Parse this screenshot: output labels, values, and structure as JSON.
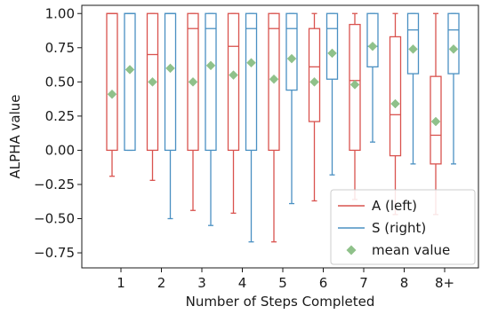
{
  "chart_data": {
    "type": "box",
    "xlabel": "Number of Steps Completed",
    "ylabel": "ALPHA value",
    "categories": [
      "1",
      "2",
      "3",
      "4",
      "5",
      "6",
      "7",
      "8",
      "8+"
    ],
    "ylim": [
      -0.86,
      1.06
    ],
    "yticks": [
      {
        "value": 1.0,
        "label": "1.00"
      },
      {
        "value": 0.75,
        "label": "0.75"
      },
      {
        "value": 0.5,
        "label": "0.50"
      },
      {
        "value": 0.25,
        "label": "0.25"
      },
      {
        "value": 0.0,
        "label": "0.00"
      },
      {
        "value": -0.25,
        "label": "−0.25"
      },
      {
        "value": -0.5,
        "label": "−0.50"
      },
      {
        "value": -0.75,
        "label": "−0.75"
      }
    ],
    "grid": false,
    "legend_position": "bottom-right",
    "series": [
      {
        "name": "A (left)",
        "color": "#d9534f",
        "boxes": [
          {
            "whislo": -0.19,
            "q1": 0.0,
            "med": 1.0,
            "q3": 1.0,
            "whishi": 1.0,
            "mean": 0.41
          },
          {
            "whislo": -0.22,
            "q1": 0.0,
            "med": 0.7,
            "q3": 1.0,
            "whishi": 1.0,
            "mean": 0.5
          },
          {
            "whislo": -0.44,
            "q1": 0.0,
            "med": 0.89,
            "q3": 1.0,
            "whishi": 1.0,
            "mean": 0.5
          },
          {
            "whislo": -0.46,
            "q1": 0.0,
            "med": 0.76,
            "q3": 1.0,
            "whishi": 1.0,
            "mean": 0.55
          },
          {
            "whislo": -0.67,
            "q1": 0.0,
            "med": 0.89,
            "q3": 1.0,
            "whishi": 1.0,
            "mean": 0.52
          },
          {
            "whislo": -0.37,
            "q1": 0.21,
            "med": 0.61,
            "q3": 0.89,
            "whishi": 1.0,
            "mean": 0.5
          },
          {
            "whislo": -0.36,
            "q1": 0.0,
            "med": 0.51,
            "q3": 0.92,
            "whishi": 1.0,
            "mean": 0.48
          },
          {
            "whislo": -0.47,
            "q1": -0.04,
            "med": 0.26,
            "q3": 0.83,
            "whishi": 1.0,
            "mean": 0.34
          },
          {
            "whislo": -0.47,
            "q1": -0.1,
            "med": 0.11,
            "q3": 0.54,
            "whishi": 1.0,
            "mean": 0.21
          }
        ]
      },
      {
        "name": "S (right)",
        "color": "#4a90c2",
        "boxes": [
          {
            "whislo": 0.0,
            "q1": 0.0,
            "med": 1.0,
            "q3": 1.0,
            "whishi": 1.0,
            "mean": 0.59
          },
          {
            "whislo": -0.5,
            "q1": 0.0,
            "med": 1.0,
            "q3": 1.0,
            "whishi": 1.0,
            "mean": 0.6
          },
          {
            "whislo": -0.55,
            "q1": 0.0,
            "med": 0.89,
            "q3": 1.0,
            "whishi": 1.0,
            "mean": 0.62
          },
          {
            "whislo": -0.67,
            "q1": 0.0,
            "med": 0.89,
            "q3": 1.0,
            "whishi": 1.0,
            "mean": 0.64
          },
          {
            "whislo": -0.39,
            "q1": 0.44,
            "med": 0.89,
            "q3": 1.0,
            "whishi": 1.0,
            "mean": 0.67
          },
          {
            "whislo": -0.18,
            "q1": 0.52,
            "med": 0.89,
            "q3": 1.0,
            "whishi": 1.0,
            "mean": 0.71
          },
          {
            "whislo": 0.06,
            "q1": 0.61,
            "med": 0.76,
            "q3": 1.0,
            "whishi": 1.0,
            "mean": 0.76
          },
          {
            "whislo": -0.1,
            "q1": 0.56,
            "med": 0.88,
            "q3": 1.0,
            "whishi": 1.0,
            "mean": 0.74
          },
          {
            "whislo": -0.1,
            "q1": 0.56,
            "med": 0.88,
            "q3": 1.0,
            "whishi": 1.0,
            "mean": 0.74
          }
        ]
      }
    ],
    "mean_marker": {
      "name": "mean value",
      "color": "#8fc18a",
      "shape": "diamond"
    }
  }
}
